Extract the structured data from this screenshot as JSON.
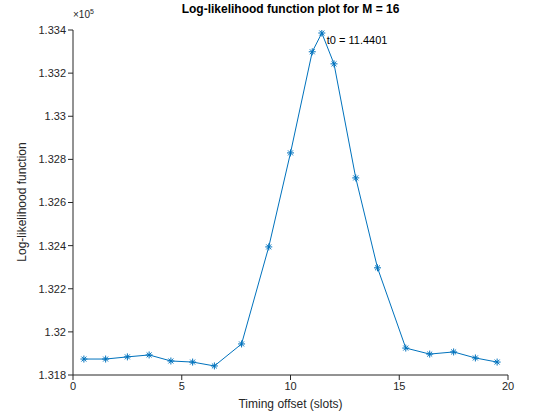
{
  "chart_data": {
    "type": "line",
    "title": "Log-likelihood function plot for M = 16",
    "x_label": "Timing offset (slots)",
    "y_label": "Log-likelihood function",
    "y_exponent_label": {
      "base": "×10",
      "exponent": "5"
    },
    "x": [
      0.5,
      1.5,
      2.5,
      3.5,
      4.5,
      5.5,
      6.5,
      7.75,
      9,
      10,
      11,
      11.4401,
      12,
      13,
      14,
      15.3,
      16.4,
      17.5,
      18.5,
      19.5
    ],
    "values": [
      1.31874,
      1.31874,
      1.31884,
      1.31893,
      1.31865,
      1.3186,
      1.31842,
      1.31944,
      1.32394,
      1.3283,
      1.33299,
      1.33386,
      1.33243,
      1.32714,
      1.32297,
      1.31925,
      1.31897,
      1.31907,
      1.31879,
      1.3186
    ],
    "color": "#0072bd",
    "marker": "asterisk",
    "line_style": "solid",
    "xlim": [
      0,
      20
    ],
    "xticks": [
      0,
      5,
      10,
      15,
      20
    ],
    "ylim": [
      1.318,
      1.334
    ],
    "yticks": [
      1.318,
      1.32,
      1.322,
      1.324,
      1.326,
      1.328,
      1.33,
      1.332,
      1.334
    ],
    "grid": false,
    "annotations": [
      {
        "text": "t0 = 11.4401",
        "x": 11.4401,
        "y": 1.33386
      }
    ]
  }
}
